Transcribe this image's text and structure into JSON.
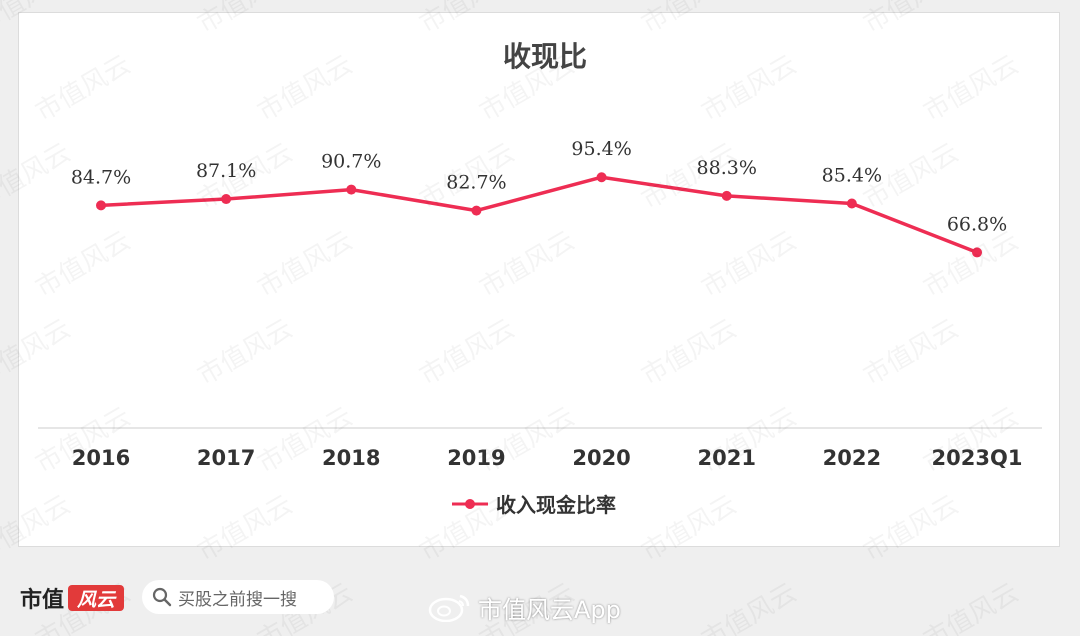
{
  "chart_data": {
    "type": "line",
    "title": "收现比",
    "categories": [
      "2016",
      "2017",
      "2018",
      "2019",
      "2020",
      "2021",
      "2022",
      "2023Q1"
    ],
    "series": [
      {
        "name": "收入现金比率",
        "values": [
          84.7,
          87.1,
          90.7,
          82.7,
          95.4,
          88.3,
          85.4,
          66.8
        ],
        "labels": [
          "84.7%",
          "87.1%",
          "90.7%",
          "82.7%",
          "95.4%",
          "88.3%",
          "85.4%",
          "66.8%"
        ],
        "color": "#ee2d53"
      }
    ],
    "ylim": [
      0,
      140
    ],
    "grid": false,
    "legend_position": "bottom-center"
  },
  "watermark": {
    "text": "市值风云"
  },
  "footer": {
    "brand_text": "市值",
    "brand_mark": "风云",
    "search_placeholder": "买股之前搜一搜",
    "weibo_text": "市值风云App"
  },
  "colors": {
    "line": "#ee2d53",
    "background": "#efefef",
    "card": "#ffffff",
    "axis": "#cccccc",
    "text": "#333333"
  }
}
